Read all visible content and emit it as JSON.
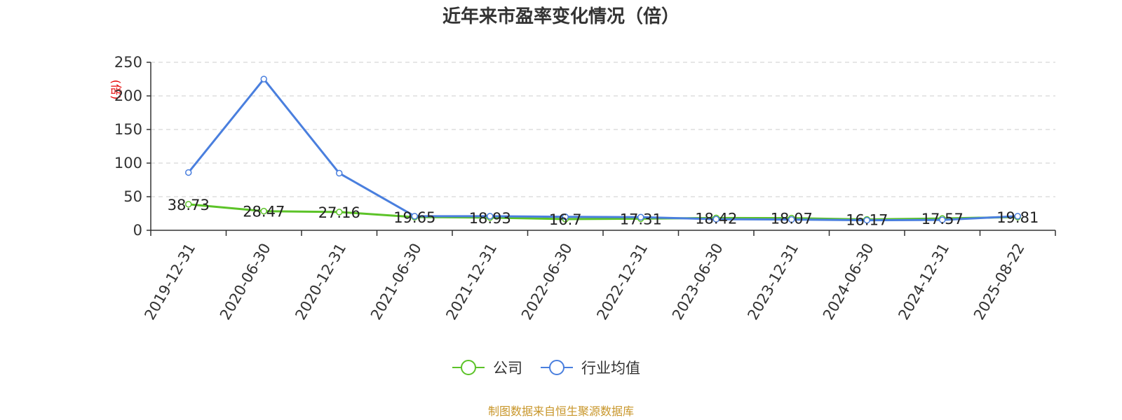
{
  "chart_data": {
    "type": "line",
    "title": "近年来市盈率变化情况（倍）",
    "ylabel": "(倍)",
    "ylim": [
      0,
      250
    ],
    "yticks": [
      0,
      50,
      100,
      150,
      200,
      250
    ],
    "grid": true,
    "legend_position": "bottom-center",
    "categories": [
      "2019-12-31",
      "2020-06-30",
      "2020-12-31",
      "2021-06-30",
      "2021-12-31",
      "2022-06-30",
      "2022-12-31",
      "2023-06-30",
      "2023-12-31",
      "2024-06-30",
      "2024-12-31",
      "2025-08-22"
    ],
    "series": [
      {
        "name": "公司",
        "color": "#5cc328",
        "values": [
          38.73,
          28.47,
          27.16,
          19.65,
          18.93,
          16.7,
          17.31,
          18.42,
          18.07,
          16.17,
          17.57,
          19.81
        ],
        "labels": [
          "38.73",
          "28.47",
          "27.16",
          "19.65",
          "18.93",
          "16.7",
          "17.31",
          "18.42",
          "18.07",
          "16.17",
          "17.57",
          "19.81"
        ]
      },
      {
        "name": "行业均值",
        "color": "#4a7fde",
        "values": [
          86,
          225,
          85,
          21,
          21,
          20,
          19.5,
          16.5,
          16,
          15,
          15.5,
          21
        ]
      }
    ]
  },
  "source": "制图数据来自恒生聚源数据库"
}
